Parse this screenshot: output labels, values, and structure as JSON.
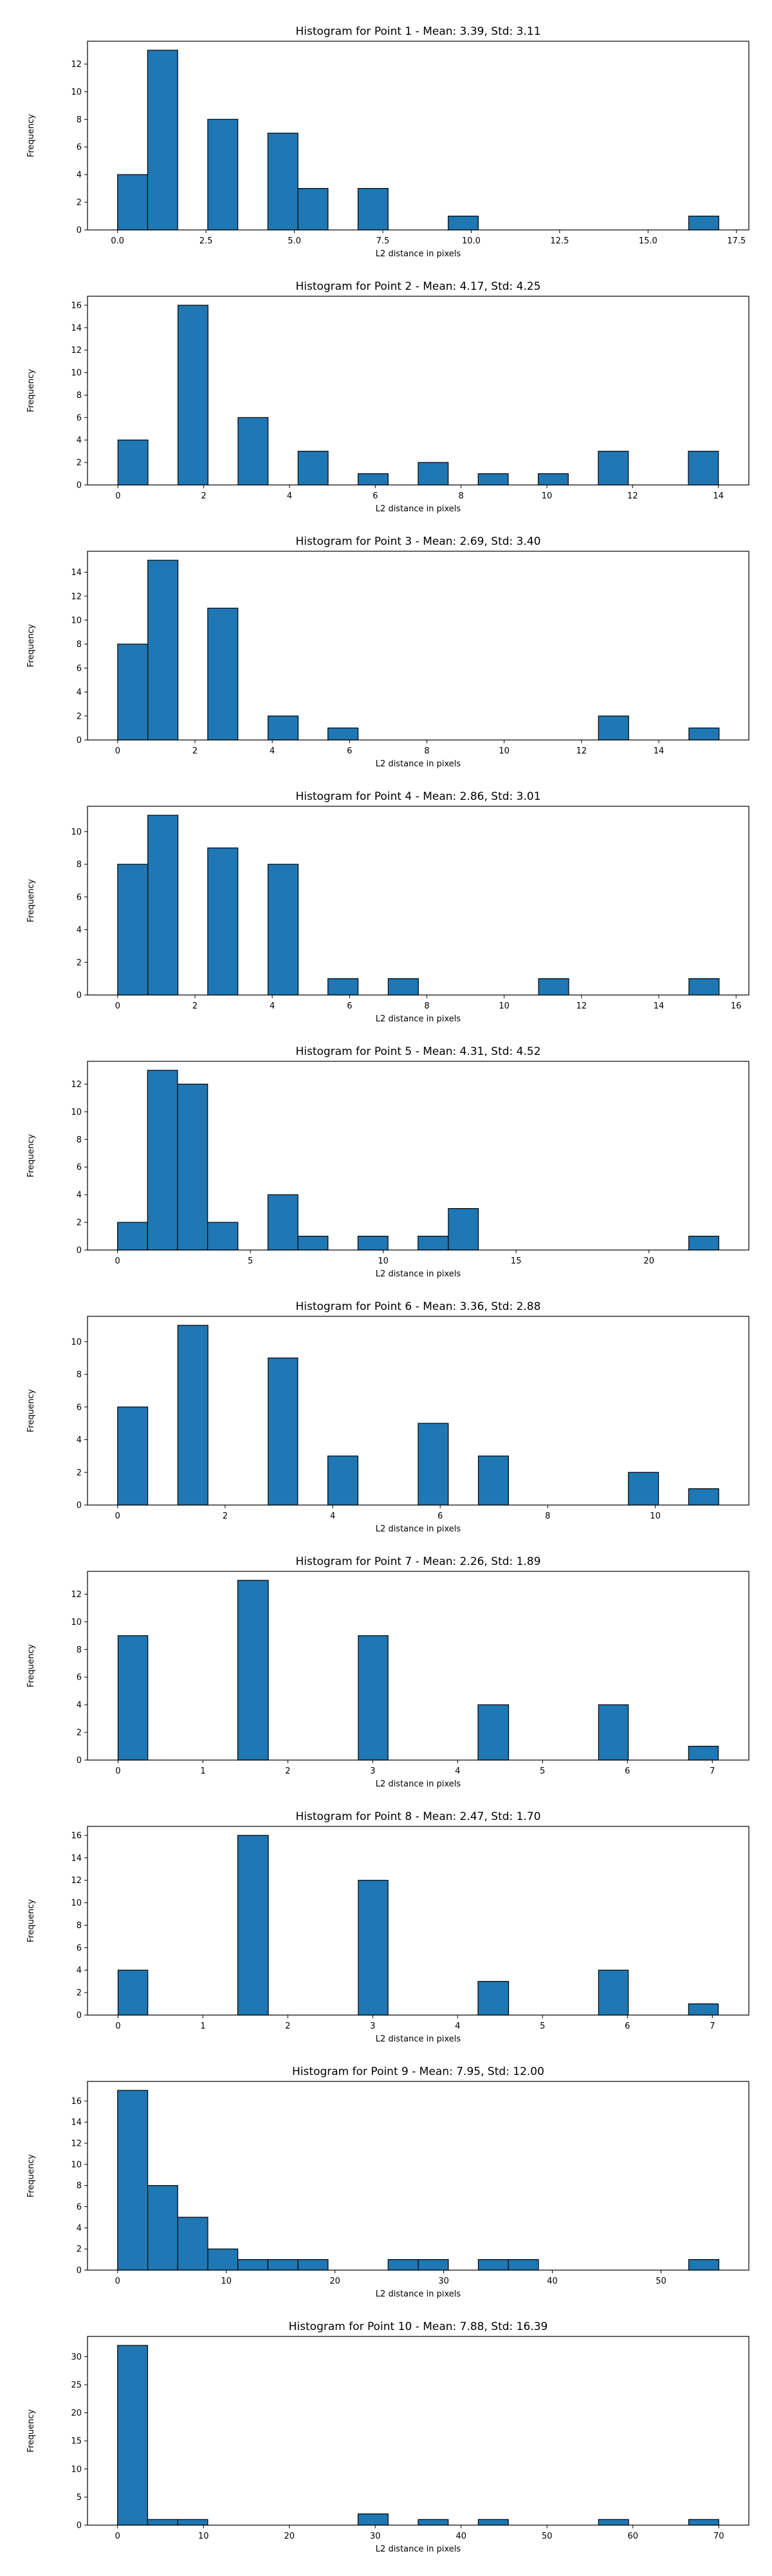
{
  "style": {
    "bar_color": "#1f77b4",
    "edge_color": "#000000"
  },
  "chart_data": [
    {
      "type": "bar",
      "title": "Histogram for Point 1 - Mean: 3.39, Std: 3.11",
      "xlabel": "L2 distance in pixels",
      "ylabel": "Frequency",
      "xlim": [
        -0.85,
        17.85
      ],
      "ylim": [
        0,
        13.65
      ],
      "xticks": [
        0.0,
        2.5,
        5.0,
        7.5,
        10.0,
        12.5,
        15.0,
        17.5
      ],
      "xtick_labels": [
        "0.0",
        "2.5",
        "5.0",
        "7.5",
        "10.0",
        "12.5",
        "15.0",
        "17.5"
      ],
      "yticks": [
        0,
        2,
        4,
        6,
        8,
        10,
        12
      ],
      "bin_edges": [
        0.0,
        0.85,
        1.7,
        2.55,
        3.4,
        4.25,
        5.1,
        5.95,
        6.8,
        7.65,
        8.5,
        9.35,
        10.2,
        11.05,
        11.9,
        12.75,
        13.6,
        14.45,
        15.3,
        16.15,
        17.0
      ],
      "values": [
        4,
        13,
        0,
        8,
        0,
        7,
        3,
        0,
        3,
        0,
        0,
        1,
        0,
        0,
        0,
        0,
        0,
        0,
        0,
        1
      ]
    },
    {
      "type": "bar",
      "title": "Histogram for Point 2 - Mean: 4.17, Std: 4.25",
      "xlabel": "L2 distance in pixels",
      "ylabel": "Frequency",
      "xlim": [
        -0.71,
        14.71
      ],
      "ylim": [
        0,
        16.8
      ],
      "xticks": [
        0,
        2,
        4,
        6,
        8,
        10,
        12,
        14
      ],
      "xtick_labels": [
        "0",
        "2",
        "4",
        "6",
        "8",
        "10",
        "12",
        "14"
      ],
      "yticks": [
        0,
        2,
        4,
        6,
        8,
        10,
        12,
        14,
        16
      ],
      "bin_edges": [
        0.0,
        0.7,
        1.4,
        2.1,
        2.8,
        3.5,
        4.2,
        4.9,
        5.6,
        6.3,
        7.0,
        7.7,
        8.4,
        9.1,
        9.8,
        10.5,
        11.2,
        11.9,
        12.6,
        13.3,
        14.0
      ],
      "values": [
        4,
        0,
        16,
        0,
        6,
        0,
        3,
        0,
        1,
        0,
        2,
        0,
        1,
        0,
        1,
        0,
        3,
        0,
        0,
        3
      ]
    },
    {
      "type": "bar",
      "title": "Histogram for Point 3 - Mean: 2.69, Std: 3.40",
      "xlabel": "L2 distance in pixels",
      "ylabel": "Frequency",
      "xlim": [
        -0.78,
        16.33
      ],
      "ylim": [
        0,
        15.75
      ],
      "xticks": [
        0,
        2,
        4,
        6,
        8,
        10,
        12,
        14
      ],
      "xtick_labels": [
        "0",
        "2",
        "4",
        "6",
        "8",
        "10",
        "12",
        "14"
      ],
      "yticks": [
        0,
        2,
        4,
        6,
        8,
        10,
        12,
        14
      ],
      "bin_edges": [
        0.0,
        0.78,
        1.56,
        2.33,
        3.11,
        3.89,
        4.67,
        5.44,
        6.22,
        7.0,
        7.78,
        8.56,
        9.33,
        10.11,
        10.89,
        11.67,
        12.44,
        13.22,
        14.0,
        14.78,
        15.56
      ],
      "values": [
        8,
        15,
        0,
        11,
        0,
        2,
        0,
        1,
        0,
        0,
        0,
        0,
        0,
        0,
        0,
        0,
        2,
        0,
        0,
        1
      ]
    },
    {
      "type": "bar",
      "title": "Histogram for Point 4 - Mean: 2.86, Std: 3.01",
      "xlabel": "L2 distance in pixels",
      "ylabel": "Frequency",
      "xlim": [
        -0.78,
        16.33
      ],
      "ylim": [
        0,
        11.55
      ],
      "xticks": [
        0,
        2,
        4,
        6,
        8,
        10,
        12,
        14,
        16
      ],
      "xtick_labels": [
        "0",
        "2",
        "4",
        "6",
        "8",
        "10",
        "12",
        "14",
        "16"
      ],
      "yticks": [
        0,
        2,
        4,
        6,
        8,
        10
      ],
      "bin_edges": [
        0.0,
        0.78,
        1.56,
        2.33,
        3.11,
        3.89,
        4.67,
        5.44,
        6.22,
        7.0,
        7.78,
        8.56,
        9.33,
        10.11,
        10.89,
        11.67,
        12.44,
        13.22,
        14.0,
        14.78,
        15.56
      ],
      "values": [
        8,
        11,
        0,
        9,
        0,
        8,
        0,
        1,
        0,
        1,
        0,
        0,
        0,
        0,
        1,
        0,
        0,
        0,
        0,
        1
      ]
    },
    {
      "type": "bar",
      "title": "Histogram for Point 5 - Mean: 4.31, Std: 4.52",
      "xlabel": "L2 distance in pixels",
      "ylabel": "Frequency",
      "xlim": [
        -1.13,
        23.76
      ],
      "ylim": [
        0,
        13.65
      ],
      "xticks": [
        0,
        5,
        10,
        15,
        20
      ],
      "xtick_labels": [
        "0",
        "5",
        "10",
        "15",
        "20"
      ],
      "yticks": [
        0,
        2,
        4,
        6,
        8,
        10,
        12
      ],
      "bin_edges": [
        0.0,
        1.13,
        2.26,
        3.39,
        4.53,
        5.66,
        6.79,
        7.92,
        9.05,
        10.18,
        11.31,
        12.45,
        13.58,
        14.71,
        15.84,
        16.97,
        18.1,
        19.23,
        20.37,
        21.5,
        22.63
      ],
      "values": [
        2,
        13,
        12,
        2,
        0,
        4,
        1,
        0,
        1,
        0,
        1,
        3,
        0,
        0,
        0,
        0,
        0,
        0,
        0,
        1
      ]
    },
    {
      "type": "bar",
      "title": "Histogram for Point 6 - Mean: 3.36, Std: 2.88",
      "xlabel": "L2 distance in pixels",
      "ylabel": "Frequency",
      "xlim": [
        -0.56,
        11.74
      ],
      "ylim": [
        0,
        11.55
      ],
      "xticks": [
        0,
        2,
        4,
        6,
        8,
        10
      ],
      "xtick_labels": [
        "0",
        "2",
        "4",
        "6",
        "8",
        "10"
      ],
      "yticks": [
        0,
        2,
        4,
        6,
        8,
        10
      ],
      "bin_edges": [
        0.0,
        0.56,
        1.12,
        1.68,
        2.24,
        2.8,
        3.35,
        3.91,
        4.47,
        5.03,
        5.59,
        6.15,
        6.71,
        7.27,
        7.83,
        8.39,
        8.94,
        9.5,
        10.06,
        10.62,
        11.18
      ],
      "values": [
        6,
        0,
        11,
        0,
        0,
        9,
        0,
        3,
        0,
        0,
        5,
        0,
        3,
        0,
        0,
        0,
        0,
        2,
        0,
        1
      ]
    },
    {
      "type": "bar",
      "title": "Histogram for Point 7 - Mean: 2.26, Std: 1.89",
      "xlabel": "L2 distance in pixels",
      "ylabel": "Frequency",
      "xlim": [
        -0.36,
        7.43
      ],
      "ylim": [
        0,
        13.65
      ],
      "xticks": [
        0,
        1,
        2,
        3,
        4,
        5,
        6,
        7
      ],
      "xtick_labels": [
        "0",
        "1",
        "2",
        "3",
        "4",
        "5",
        "6",
        "7"
      ],
      "yticks": [
        0,
        2,
        4,
        6,
        8,
        10,
        12
      ],
      "bin_edges": [
        0.0,
        0.35,
        0.71,
        1.06,
        1.41,
        1.77,
        2.12,
        2.47,
        2.83,
        3.18,
        3.54,
        3.89,
        4.24,
        4.6,
        4.95,
        5.3,
        5.66,
        6.01,
        6.36,
        6.72,
        7.07
      ],
      "values": [
        9,
        0,
        0,
        0,
        13,
        0,
        0,
        0,
        9,
        0,
        0,
        0,
        4,
        0,
        0,
        0,
        4,
        0,
        0,
        1
      ]
    },
    {
      "type": "bar",
      "title": "Histogram for Point 8 - Mean: 2.47, Std: 1.70",
      "xlabel": "L2 distance in pixels",
      "ylabel": "Frequency",
      "xlim": [
        -0.36,
        7.43
      ],
      "ylim": [
        0,
        16.8
      ],
      "xticks": [
        0,
        1,
        2,
        3,
        4,
        5,
        6,
        7
      ],
      "xtick_labels": [
        "0",
        "1",
        "2",
        "3",
        "4",
        "5",
        "6",
        "7"
      ],
      "yticks": [
        0,
        2,
        4,
        6,
        8,
        10,
        12,
        14,
        16
      ],
      "bin_edges": [
        0.0,
        0.35,
        0.71,
        1.06,
        1.41,
        1.77,
        2.12,
        2.47,
        2.83,
        3.18,
        3.54,
        3.89,
        4.24,
        4.6,
        4.95,
        5.3,
        5.66,
        6.01,
        6.36,
        6.72,
        7.07
      ],
      "values": [
        4,
        0,
        0,
        0,
        16,
        0,
        0,
        0,
        12,
        0,
        0,
        0,
        3,
        0,
        0,
        0,
        4,
        0,
        0,
        1
      ]
    },
    {
      "type": "bar",
      "title": "Histogram for Point 9 - Mean: 7.95, Std: 12.00",
      "xlabel": "L2 distance in pixels",
      "ylabel": "Frequency",
      "xlim": [
        -2.77,
        58.08
      ],
      "ylim": [
        0,
        17.85
      ],
      "xticks": [
        0,
        10,
        20,
        30,
        40,
        50
      ],
      "xtick_labels": [
        "0",
        "10",
        "20",
        "30",
        "40",
        "50"
      ],
      "yticks": [
        0,
        2,
        4,
        6,
        8,
        10,
        12,
        14,
        16
      ],
      "bin_edges": [
        0.0,
        2.77,
        5.53,
        8.3,
        11.06,
        13.83,
        16.6,
        19.36,
        22.13,
        24.89,
        27.66,
        30.43,
        33.19,
        35.96,
        38.72,
        41.49,
        44.26,
        47.02,
        49.79,
        52.55,
        55.32
      ],
      "values": [
        17,
        8,
        5,
        2,
        1,
        1,
        1,
        0,
        0,
        1,
        1,
        0,
        1,
        1,
        0,
        0,
        0,
        0,
        0,
        1
      ]
    },
    {
      "type": "bar",
      "title": "Histogram for Point 10 - Mean: 7.88, Std: 16.39",
      "xlabel": "L2 distance in pixels",
      "ylabel": "Frequency",
      "xlim": [
        -3.5,
        73.5
      ],
      "ylim": [
        0,
        33.6
      ],
      "xticks": [
        0,
        10,
        20,
        30,
        40,
        50,
        60,
        70
      ],
      "xtick_labels": [
        "0",
        "10",
        "20",
        "30",
        "40",
        "50",
        "60",
        "70"
      ],
      "yticks": [
        0,
        5,
        10,
        15,
        20,
        25,
        30
      ],
      "bin_edges": [
        0.0,
        3.5,
        7.0,
        10.5,
        14.0,
        17.5,
        21.0,
        24.5,
        28.0,
        31.5,
        35.0,
        38.5,
        42.0,
        45.5,
        49.0,
        52.5,
        56.0,
        59.5,
        63.0,
        66.5,
        70.0
      ],
      "values": [
        32,
        1,
        1,
        0,
        0,
        0,
        0,
        0,
        2,
        0,
        1,
        0,
        1,
        0,
        0,
        0,
        1,
        0,
        0,
        1
      ]
    }
  ]
}
